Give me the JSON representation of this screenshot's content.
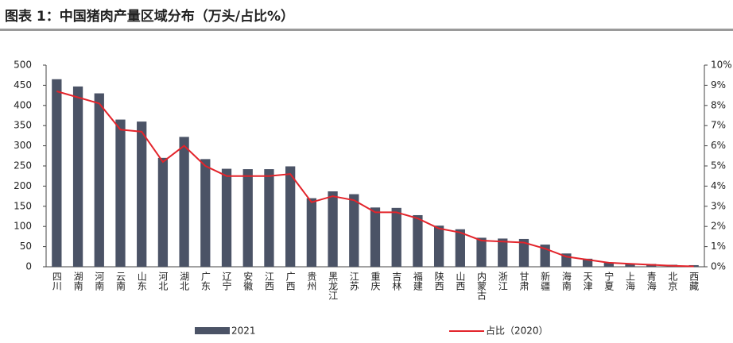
{
  "chart_data": {
    "type": "bar",
    "title": "图表 1：中国猪肉产量区域分布（万头/占比%）",
    "categories": [
      "四川",
      "湖南",
      "河南",
      "云南",
      "山东",
      "河北",
      "湖北",
      "广东",
      "辽宁",
      "安徽",
      "江西",
      "广西",
      "贵州",
      "黑龙江",
      "江苏",
      "重庆",
      "吉林",
      "福建",
      "陕西",
      "山西",
      "内蒙古",
      "浙江",
      "甘肃",
      "新疆",
      "海南",
      "天津",
      "宁夏",
      "上海",
      "青海",
      "北京",
      "西藏"
    ],
    "series": [
      {
        "name": "2021",
        "type": "bar",
        "color": "#4b5366",
        "values": [
          465,
          447,
          430,
          365,
          360,
          270,
          322,
          267,
          243,
          242,
          242,
          249,
          170,
          187,
          180,
          147,
          146,
          128,
          102,
          93,
          72,
          70,
          69,
          55,
          33,
          20,
          10,
          8,
          7,
          5,
          4
        ]
      },
      {
        "name": "占比（2020）",
        "type": "line",
        "axis": "y2",
        "color": "#e3242b",
        "values": [
          8.7,
          8.4,
          8.1,
          6.8,
          6.7,
          5.2,
          6.0,
          5.0,
          4.5,
          4.5,
          4.5,
          4.6,
          3.2,
          3.5,
          3.3,
          2.7,
          2.7,
          2.4,
          1.9,
          1.7,
          1.3,
          1.25,
          1.2,
          0.9,
          0.5,
          0.35,
          0.2,
          0.15,
          0.1,
          0.05,
          0.02
        ]
      }
    ],
    "ylim": [
      0,
      500
    ],
    "yticks": [
      0,
      50,
      100,
      150,
      200,
      250,
      300,
      350,
      400,
      450,
      500
    ],
    "y2lim": [
      0,
      10
    ],
    "y2ticks": [
      {
        "value": 0,
        "label": "0%"
      },
      {
        "value": 1,
        "label": "1%"
      },
      {
        "value": 2,
        "label": "2%"
      },
      {
        "value": 3,
        "label": "3%"
      },
      {
        "value": 4,
        "label": "4%"
      },
      {
        "value": 5,
        "label": "5%"
      },
      {
        "value": 6,
        "label": "6%"
      },
      {
        "value": 7,
        "label": "7%"
      },
      {
        "value": 8,
        "label": "8%"
      },
      {
        "value": 9,
        "label": "9%"
      },
      {
        "value": 10,
        "label": "10%"
      }
    ],
    "grid": false
  }
}
